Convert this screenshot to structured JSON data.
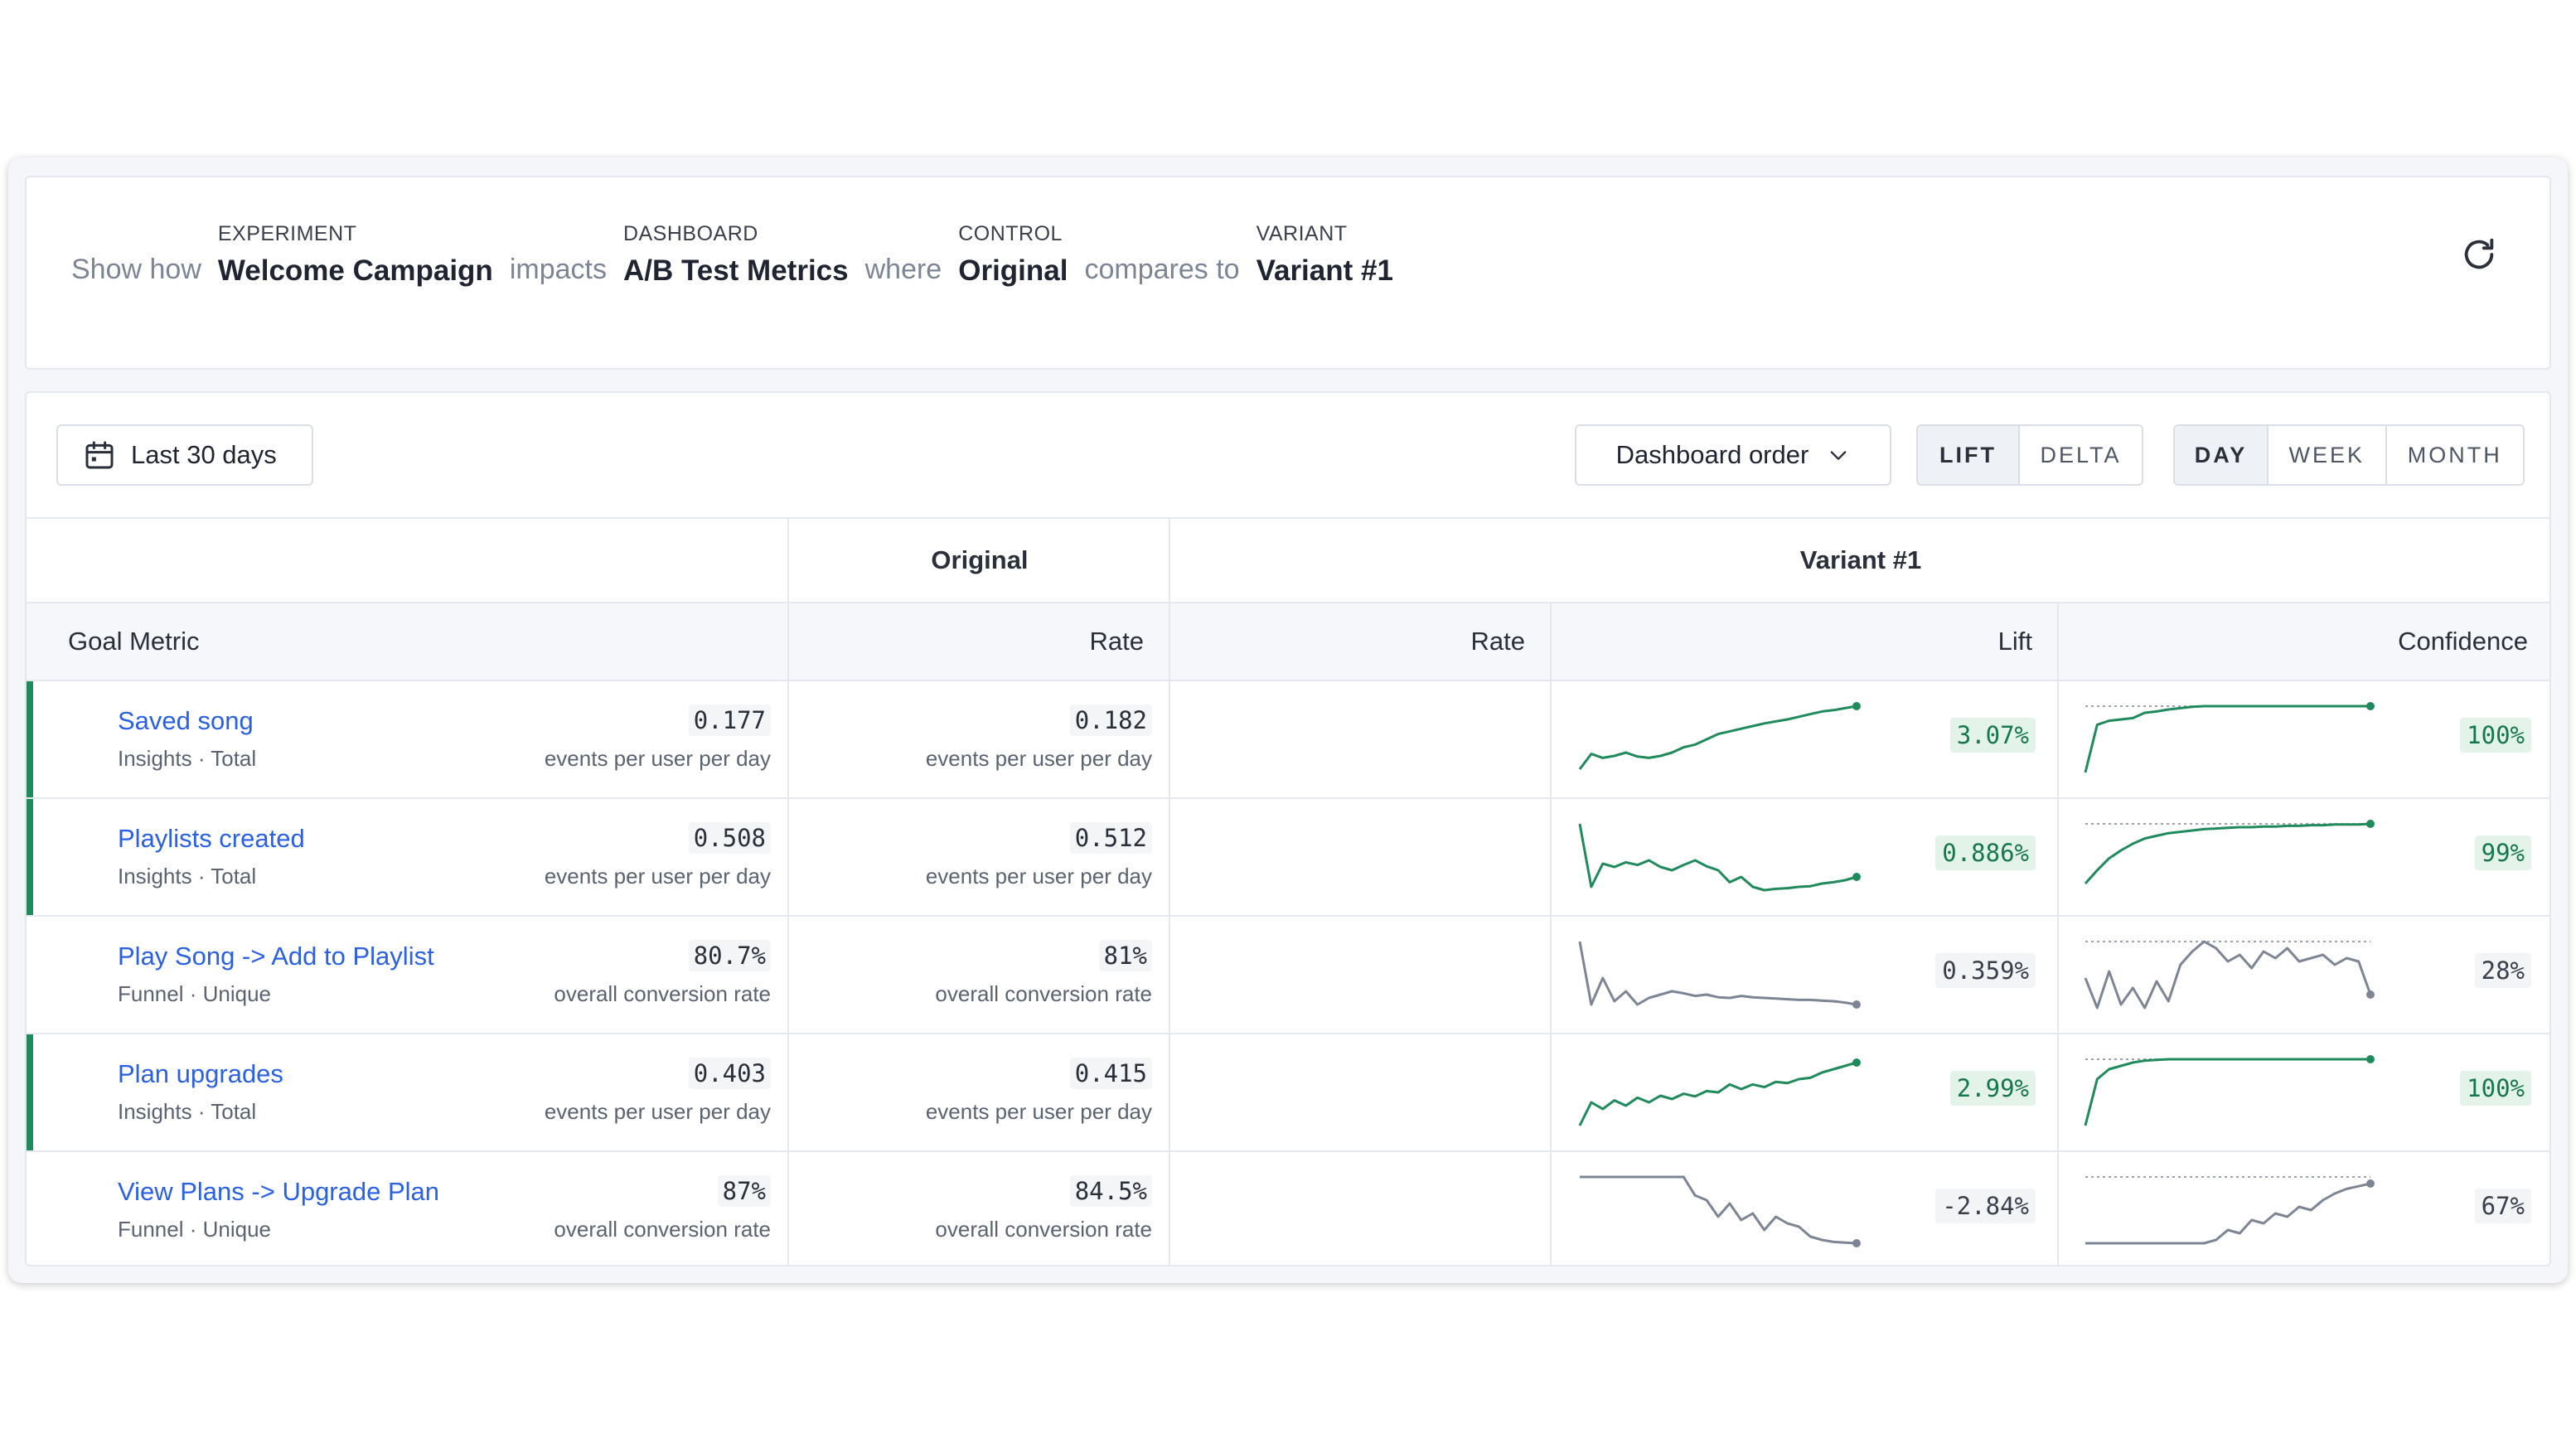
{
  "header": {
    "word_show_how": "Show how",
    "word_impacts": "impacts",
    "word_where": "where",
    "word_compares_to": "compares to",
    "experiment": {
      "caption": "EXPERIMENT",
      "value": "Welcome Campaign"
    },
    "dashboard": {
      "caption": "DASHBOARD",
      "value": "A/B Test Metrics"
    },
    "control": {
      "caption": "CONTROL",
      "value": "Original"
    },
    "variant": {
      "caption": "VARIANT",
      "value": "Variant #1"
    },
    "refresh_icon": "refresh-icon"
  },
  "toolbar": {
    "date_range": "Last 30 days",
    "calendar_icon": "calendar-icon",
    "order_label": "Dashboard order",
    "mode_options": [
      "LIFT",
      "DELTA"
    ],
    "mode_active": "LIFT",
    "period_options": [
      "DAY",
      "WEEK",
      "MONTH"
    ],
    "period_active": "DAY"
  },
  "table": {
    "group_original": "Original",
    "group_variant": "Variant #1",
    "col_goal_metric": "Goal Metric",
    "col_rate_original": "Rate",
    "col_rate_variant": "Rate",
    "col_lift": "Lift",
    "col_confidence": "Confidence",
    "colors": {
      "positive": "#1f8a5b",
      "neutral": "#7d8594",
      "link": "#2a60e4"
    },
    "rows": [
      {
        "name": "Saved song",
        "source": "Insights · Total",
        "significant": true,
        "original_rate": "0.177",
        "original_unit": "events per user per day",
        "variant_rate": "0.182",
        "variant_unit": "events per user per day",
        "lift": "3.07%",
        "confidence": "100%",
        "lift_series": [
          0.05,
          0.28,
          0.22,
          0.25,
          0.3,
          0.24,
          0.22,
          0.25,
          0.3,
          0.38,
          0.42,
          0.5,
          0.58,
          0.62,
          0.66,
          0.7,
          0.74,
          0.77,
          0.8,
          0.84,
          0.88,
          0.92,
          0.94,
          0.97,
          1.0
        ],
        "conf_series": [
          0.0,
          0.72,
          0.78,
          0.8,
          0.82,
          0.9,
          0.92,
          0.95,
          0.97,
          0.99,
          1.0,
          1.0,
          1.0,
          1.0,
          1.0,
          1.0,
          1.0,
          1.0,
          1.0,
          1.0,
          1.0,
          1.0,
          1.0,
          1.0,
          1.0
        ]
      },
      {
        "name": "Playlists created",
        "source": "Insights · Total",
        "significant": true,
        "original_rate": "0.508",
        "original_unit": "events per user per day",
        "variant_rate": "0.512",
        "variant_unit": "events per user per day",
        "lift": "0.886%",
        "confidence": "99%",
        "lift_series": [
          1.0,
          0.05,
          0.4,
          0.35,
          0.42,
          0.38,
          0.45,
          0.35,
          0.3,
          0.38,
          0.45,
          0.36,
          0.3,
          0.12,
          0.2,
          0.05,
          0.0,
          0.02,
          0.03,
          0.05,
          0.06,
          0.1,
          0.12,
          0.15,
          0.2
        ],
        "conf_series": [
          0.1,
          0.3,
          0.48,
          0.6,
          0.7,
          0.78,
          0.82,
          0.86,
          0.88,
          0.9,
          0.92,
          0.93,
          0.94,
          0.95,
          0.95,
          0.96,
          0.96,
          0.97,
          0.97,
          0.98,
          0.98,
          0.99,
          0.99,
          0.99,
          1.0
        ]
      },
      {
        "name": "Play Song -> Add to Playlist",
        "source": "Funnel · Unique",
        "significant": false,
        "original_rate": "80.7%",
        "original_unit": "overall conversion rate",
        "variant_rate": "81%",
        "variant_unit": "overall conversion rate",
        "lift": "0.359%",
        "confidence": "28%",
        "lift_series": [
          1.0,
          0.05,
          0.45,
          0.1,
          0.25,
          0.05,
          0.15,
          0.2,
          0.25,
          0.22,
          0.18,
          0.2,
          0.16,
          0.15,
          0.18,
          0.16,
          0.15,
          0.14,
          0.13,
          0.12,
          0.12,
          0.11,
          0.1,
          0.08,
          0.05
        ],
        "conf_series": [
          0.45,
          0.0,
          0.55,
          0.05,
          0.3,
          0.0,
          0.4,
          0.1,
          0.65,
          0.85,
          1.0,
          0.9,
          0.7,
          0.8,
          0.6,
          0.85,
          0.75,
          0.9,
          0.7,
          0.75,
          0.8,
          0.65,
          0.75,
          0.7,
          0.2
        ]
      },
      {
        "name": "Plan upgrades",
        "source": "Insights · Total",
        "significant": true,
        "original_rate": "0.403",
        "original_unit": "events per user per day",
        "variant_rate": "0.415",
        "variant_unit": "events per user per day",
        "lift": "2.99%",
        "confidence": "100%",
        "lift_series": [
          0.0,
          0.35,
          0.25,
          0.38,
          0.3,
          0.42,
          0.35,
          0.45,
          0.4,
          0.48,
          0.44,
          0.52,
          0.5,
          0.62,
          0.55,
          0.62,
          0.58,
          0.66,
          0.64,
          0.7,
          0.72,
          0.8,
          0.85,
          0.9,
          0.95
        ],
        "conf_series": [
          0.0,
          0.7,
          0.85,
          0.9,
          0.95,
          0.98,
          0.99,
          1.0,
          1.0,
          1.0,
          1.0,
          1.0,
          1.0,
          1.0,
          1.0,
          1.0,
          1.0,
          1.0,
          1.0,
          1.0,
          1.0,
          1.0,
          1.0,
          1.0,
          1.0
        ]
      },
      {
        "name": "View Plans -> Upgrade Plan",
        "source": "Funnel · Unique",
        "significant": false,
        "original_rate": "87%",
        "original_unit": "overall conversion rate",
        "variant_rate": "84.5%",
        "variant_unit": "overall conversion rate",
        "lift": "-2.84%",
        "confidence": "67%",
        "lift_series": [
          1.0,
          1.0,
          1.0,
          1.0,
          1.0,
          1.0,
          1.0,
          1.0,
          1.0,
          1.0,
          0.72,
          0.65,
          0.4,
          0.6,
          0.35,
          0.45,
          0.2,
          0.4,
          0.3,
          0.25,
          0.1,
          0.05,
          0.02,
          0.01,
          0.0
        ],
        "conf_series": [
          0.0,
          0.0,
          0.0,
          0.0,
          0.0,
          0.0,
          0.0,
          0.0,
          0.0,
          0.0,
          0.0,
          0.05,
          0.2,
          0.15,
          0.35,
          0.3,
          0.45,
          0.4,
          0.55,
          0.5,
          0.65,
          0.75,
          0.82,
          0.86,
          0.9
        ]
      }
    ]
  }
}
